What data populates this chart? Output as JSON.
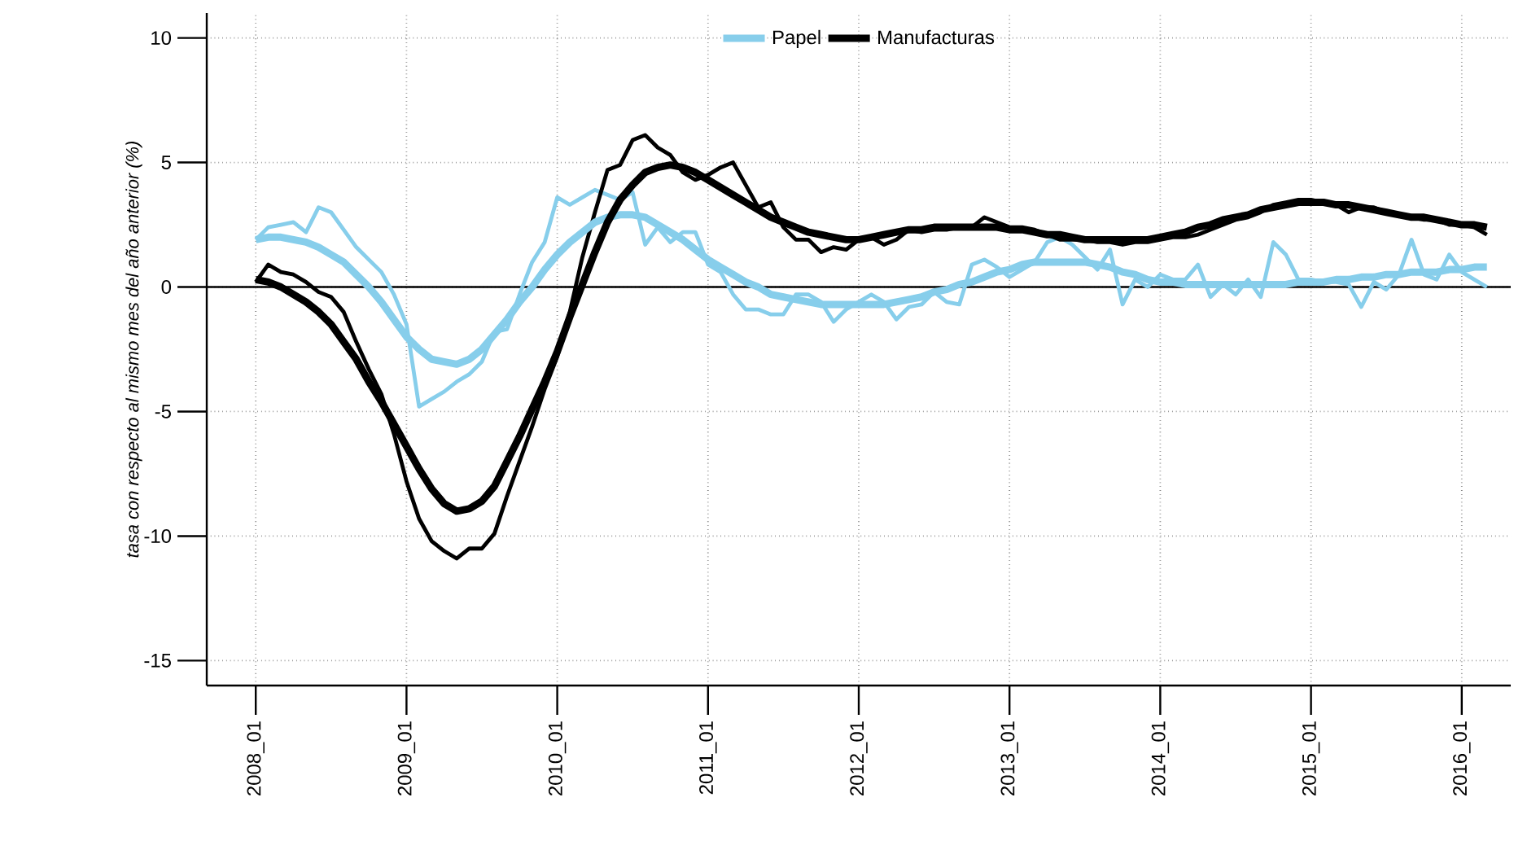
{
  "chart_data": {
    "type": "line",
    "ylabel": "tasa con respecto al mismo mes del año anterior (%)",
    "categories": [
      "2008_01",
      null,
      null,
      null,
      null,
      null,
      null,
      null,
      null,
      null,
      null,
      null,
      "2009_01",
      null,
      null,
      null,
      null,
      null,
      null,
      null,
      null,
      null,
      null,
      null,
      "2010_01",
      null,
      null,
      null,
      null,
      null,
      null,
      null,
      null,
      null,
      null,
      null,
      "2011_01",
      null,
      null,
      null,
      null,
      null,
      null,
      null,
      null,
      null,
      null,
      null,
      "2012_01",
      null,
      null,
      null,
      null,
      null,
      null,
      null,
      null,
      null,
      null,
      null,
      "2013_01",
      null,
      null,
      null,
      null,
      null,
      null,
      null,
      null,
      null,
      null,
      null,
      "2014_01",
      null,
      null,
      null,
      null,
      null,
      null,
      null,
      null,
      null,
      null,
      null,
      "2015_01",
      null,
      null,
      null,
      null,
      null,
      null,
      null,
      null,
      null,
      null,
      null,
      "2016_01",
      null,
      null
    ],
    "series": [
      {
        "color": "#87ceeb",
        "values": [
          1.9,
          2.4,
          2.5,
          2.6,
          2.2,
          3.2,
          3.0,
          2.3,
          1.6,
          1.1,
          0.6,
          -0.3,
          -1.5,
          -4.8,
          -4.5,
          -4.2,
          -3.8,
          -3.5,
          -3.0,
          -1.8,
          -1.7,
          -0.3,
          1.0,
          1.8,
          3.6,
          3.3,
          3.6,
          3.9,
          3.7,
          3.5,
          3.8,
          1.7,
          2.4,
          1.8,
          2.2,
          2.2,
          0.9,
          0.6,
          -0.3,
          -0.9,
          -0.9,
          -1.1,
          -1.1,
          -0.3,
          -0.3,
          -0.6,
          -1.4,
          -0.9,
          -0.6,
          -0.3,
          -0.6,
          -1.3,
          -0.8,
          -0.7,
          -0.2,
          -0.6,
          -0.7,
          0.9,
          1.1,
          0.8,
          0.4,
          0.7,
          1.0,
          1.8,
          2.0,
          1.7,
          1.2,
          0.7,
          1.5,
          -0.7,
          0.3,
          0.0,
          0.5,
          0.3,
          0.3,
          0.9,
          -0.4,
          0.1,
          -0.3,
          0.3,
          -0.4,
          1.8,
          1.3,
          0.3,
          0.3,
          0.2,
          0.2,
          0.1,
          -0.8,
          0.2,
          -0.1,
          0.5,
          1.9,
          0.5,
          0.3,
          1.3,
          0.6,
          0.3,
          0.0
        ]
      },
      {
        "color": "#000000",
        "values": [
          0.2,
          0.9,
          0.6,
          0.5,
          0.2,
          -0.2,
          -0.4,
          -1.0,
          -2.2,
          -3.3,
          -4.3,
          -5.9,
          -7.8,
          -9.3,
          -10.2,
          -10.6,
          -10.9,
          -10.5,
          -10.5,
          -9.9,
          -8.4,
          -7.0,
          -5.6,
          -4.1,
          -2.8,
          -1.0,
          1.2,
          3.0,
          4.7,
          4.9,
          5.9,
          6.1,
          5.6,
          5.3,
          4.6,
          4.3,
          4.5,
          4.8,
          5.0,
          4.1,
          3.2,
          3.4,
          2.4,
          1.9,
          1.9,
          1.4,
          1.6,
          1.5,
          1.9,
          2.0,
          1.7,
          1.9,
          2.3,
          2.2,
          2.3,
          2.3,
          2.4,
          2.4,
          2.8,
          2.6,
          2.4,
          2.4,
          2.3,
          2.1,
          1.9,
          1.9,
          1.9,
          1.8,
          1.8,
          1.7,
          1.8,
          1.8,
          1.9,
          2.0,
          2.0,
          2.1,
          2.3,
          2.5,
          2.7,
          2.8,
          3.0,
          3.3,
          3.4,
          3.5,
          3.5,
          3.4,
          3.3,
          3.0,
          3.2,
          3.2,
          3.0,
          2.9,
          2.8,
          2.7,
          2.7,
          2.5,
          2.5,
          2.4,
          2.1
        ]
      },
      {
        "name": "Papel",
        "color": "#87ceeb",
        "values": [
          1.9,
          2.0,
          2.0,
          1.9,
          1.8,
          1.6,
          1.3,
          1.0,
          0.5,
          0.0,
          -0.6,
          -1.3,
          -2.0,
          -2.5,
          -2.9,
          -3.0,
          -3.1,
          -2.9,
          -2.5,
          -1.9,
          -1.3,
          -0.6,
          0.0,
          0.7,
          1.3,
          1.8,
          2.2,
          2.6,
          2.8,
          2.9,
          2.9,
          2.8,
          2.5,
          2.2,
          1.9,
          1.5,
          1.1,
          0.8,
          0.5,
          0.2,
          0.0,
          -0.3,
          -0.4,
          -0.5,
          -0.6,
          -0.7,
          -0.7,
          -0.7,
          -0.7,
          -0.7,
          -0.7,
          -0.6,
          -0.5,
          -0.4,
          -0.2,
          -0.1,
          0.1,
          0.2,
          0.4,
          0.6,
          0.7,
          0.9,
          1.0,
          1.0,
          1.0,
          1.0,
          1.0,
          0.9,
          0.8,
          0.6,
          0.5,
          0.3,
          0.2,
          0.2,
          0.1,
          0.1,
          0.1,
          0.1,
          0.1,
          0.1,
          0.1,
          0.1,
          0.1,
          0.2,
          0.2,
          0.2,
          0.3,
          0.3,
          0.4,
          0.4,
          0.5,
          0.5,
          0.6,
          0.6,
          0.6,
          0.7,
          0.7,
          0.8,
          0.8
        ]
      },
      {
        "name": "Manufacturas",
        "color": "#000000",
        "values": [
          0.3,
          0.2,
          0.0,
          -0.3,
          -0.6,
          -1.0,
          -1.5,
          -2.2,
          -2.9,
          -3.8,
          -4.6,
          -5.5,
          -6.4,
          -7.3,
          -8.1,
          -8.7,
          -9.0,
          -8.9,
          -8.6,
          -8.0,
          -7.0,
          -6.0,
          -4.9,
          -3.8,
          -2.6,
          -1.2,
          0.1,
          1.4,
          2.6,
          3.5,
          4.1,
          4.6,
          4.8,
          4.9,
          4.8,
          4.6,
          4.3,
          4.0,
          3.7,
          3.4,
          3.1,
          2.8,
          2.6,
          2.4,
          2.2,
          2.1,
          2.0,
          1.9,
          1.9,
          2.0,
          2.1,
          2.2,
          2.3,
          2.3,
          2.4,
          2.4,
          2.4,
          2.4,
          2.4,
          2.4,
          2.3,
          2.3,
          2.2,
          2.1,
          2.1,
          2.0,
          1.9,
          1.9,
          1.9,
          1.9,
          1.9,
          1.9,
          2.0,
          2.1,
          2.2,
          2.4,
          2.5,
          2.7,
          2.8,
          2.9,
          3.1,
          3.2,
          3.3,
          3.4,
          3.4,
          3.4,
          3.3,
          3.3,
          3.2,
          3.1,
          3.0,
          2.9,
          2.8,
          2.8,
          2.7,
          2.6,
          2.5,
          2.5,
          2.4
        ]
      }
    ],
    "ylim": [
      -16,
      11
    ],
    "yticks": [
      -15,
      -10,
      -5,
      0,
      5,
      10
    ],
    "grid": true,
    "legend": "top",
    "ref_lines": [
      {
        "axis": "y",
        "value": 0,
        "color": "#000000",
        "line_style": "solid"
      }
    ]
  }
}
